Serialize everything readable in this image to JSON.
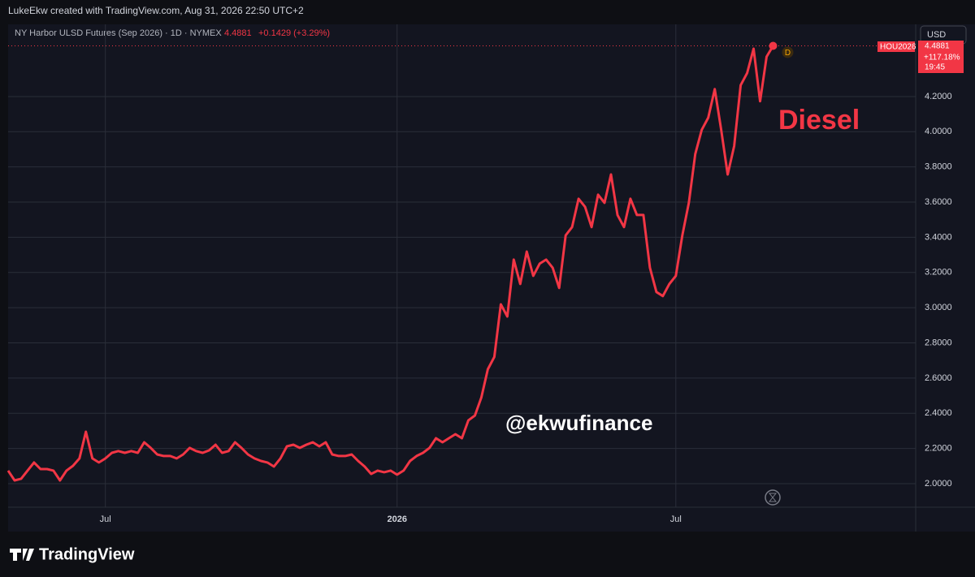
{
  "credit": "LukeEkw created with TradingView.com, Aug 31, 2026 22:50 UTC+2",
  "brand": "TradingView",
  "chart_data": {
    "type": "line",
    "title": "NY Harbor ULSD Futures (Sep 2026) · 1D · NYMEX",
    "last_value": "4.4881",
    "change": "+0.1429 (+3.29%)",
    "currency": "USD",
    "symbol": "HOU2026",
    "change_pct": "+117.18%",
    "countdown": "19:45",
    "interval_badge": "D",
    "annotations": [
      "Diesel",
      "@ekwufinance"
    ],
    "color": "#f23645",
    "values": [
      2.074,
      2.018,
      2.028,
      2.074,
      2.12,
      2.083,
      2.083,
      2.074,
      2.018,
      2.074,
      2.101,
      2.143,
      2.295,
      2.143,
      2.12,
      2.143,
      2.175,
      2.185,
      2.175,
      2.185,
      2.175,
      2.235,
      2.203,
      2.166,
      2.157,
      2.157,
      2.143,
      2.166,
      2.203,
      2.185,
      2.175,
      2.189,
      2.221,
      2.175,
      2.185,
      2.235,
      2.203,
      2.166,
      2.143,
      2.129,
      2.12,
      2.097,
      2.143,
      2.212,
      2.221,
      2.203,
      2.221,
      2.235,
      2.212,
      2.235,
      2.166,
      2.157,
      2.157,
      2.166,
      2.129,
      2.097,
      2.055,
      2.074,
      2.065,
      2.074,
      2.051,
      2.074,
      2.129,
      2.157,
      2.175,
      2.203,
      2.258,
      2.235,
      2.258,
      2.281,
      2.258,
      2.36,
      2.387,
      2.489,
      2.65,
      2.72,
      3.019,
      2.95,
      3.273,
      3.135,
      3.319,
      3.181,
      3.25,
      3.273,
      3.227,
      3.112,
      3.411,
      3.458,
      3.619,
      3.573,
      3.458,
      3.642,
      3.596,
      3.757,
      3.527,
      3.458,
      3.619,
      3.527,
      3.527,
      3.227,
      3.089,
      3.066,
      3.135,
      3.181,
      3.411,
      3.596,
      3.873,
      4.011,
      4.08,
      4.242,
      4.011,
      3.757,
      3.919,
      4.265,
      4.334,
      4.472,
      4.173,
      4.426,
      4.4881
    ],
    "xlim": [
      0,
      140
    ],
    "xticks": [
      {
        "value": 15,
        "label": "Jul"
      },
      {
        "value": 60,
        "label": "2026"
      },
      {
        "value": 103,
        "label": "Jul"
      }
    ],
    "ylim": [
      1.866,
      4.518
    ],
    "yticks": [
      {
        "value": 2.0,
        "label": "2.0000"
      },
      {
        "value": 2.2,
        "label": "2.2000"
      },
      {
        "value": 2.4,
        "label": "2.4000"
      },
      {
        "value": 2.6,
        "label": "2.6000"
      },
      {
        "value": 2.8,
        "label": "2.8000"
      },
      {
        "value": 3.0,
        "label": "3.0000"
      },
      {
        "value": 3.2,
        "label": "3.2000"
      },
      {
        "value": 3.4,
        "label": "3.4000"
      },
      {
        "value": 3.6,
        "label": "3.6000"
      },
      {
        "value": 3.8,
        "label": "3.8000"
      },
      {
        "value": 4.0,
        "label": "4.0000"
      },
      {
        "value": 4.2,
        "label": "4.2000"
      }
    ],
    "grid": true
  }
}
